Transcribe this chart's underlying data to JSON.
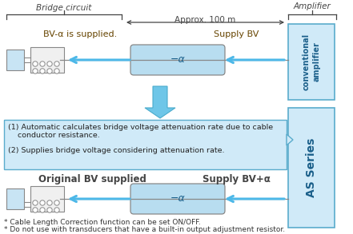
{
  "bg_color": "#ffffff",
  "arrow_blue": "#4db8e8",
  "box_blue": "#d0eaf8",
  "box_border": "#5aaccc",
  "gray": "#888888",
  "dark": "#444444",
  "text_brown": "#664400",
  "bridge_circuit_label": "Bridge circuit",
  "approx_label": "Approx. 100 m",
  "amplifier_label": "Amplifier",
  "conventional_label": "conventional\namplifier",
  "as_series_label": "AS Series",
  "bv_alpha_supplied": "BV-α is supplied.",
  "supply_bv": "Supply BV",
  "original_bv": "Original BV supplied",
  "supply_bv_alpha": "Supply BV+α",
  "minus_alpha": "−α",
  "text1": "(1) Automatic calculates bridge voltage attenuation rate due to cable\n    conductor resistance.",
  "text2": "(2) Supplies bridge voltage considering attenuation rate.",
  "footnote1": "* Cable Length Correction function can be set ON/OFF.",
  "footnote2": "* Do not use with transducers that have a built-in output adjustment resistor."
}
